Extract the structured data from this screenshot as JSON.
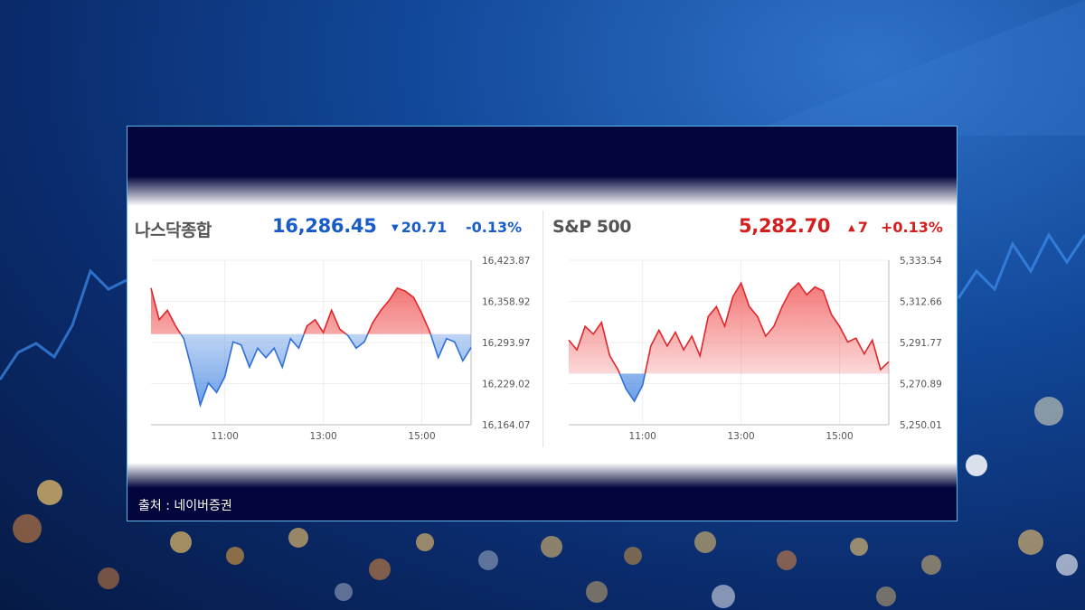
{
  "source_text": "출처 : 네이버증권",
  "chart_data": [
    {
      "type": "area",
      "name": "나스닥종합",
      "price": "16,286.45",
      "change": "20.71",
      "change_pct": "-0.13%",
      "direction": "down",
      "x_ticks": [
        "11:00",
        "13:00",
        "15:00"
      ],
      "y_ticks": [
        "16,423.87",
        "16,358.92",
        "16,293.97",
        "16,229.02",
        "16,164.07"
      ],
      "ylim": [
        16164.07,
        16423.87
      ],
      "prev_close": 16307.16,
      "x": [
        "09:30",
        "09:40",
        "09:50",
        "10:00",
        "10:10",
        "10:20",
        "10:30",
        "10:40",
        "10:50",
        "11:00",
        "11:10",
        "11:20",
        "11:30",
        "11:40",
        "11:50",
        "12:00",
        "12:10",
        "12:20",
        "12:30",
        "12:40",
        "12:50",
        "13:00",
        "13:10",
        "13:20",
        "13:30",
        "13:40",
        "13:50",
        "14:00",
        "14:10",
        "14:20",
        "14:30",
        "14:40",
        "14:50",
        "15:00",
        "15:10",
        "15:20",
        "15:30",
        "15:40",
        "15:50",
        "16:00"
      ],
      "values": [
        16380,
        16330,
        16345,
        16320,
        16300,
        16250,
        16195,
        16230,
        16215,
        16240,
        16295,
        16290,
        16255,
        16285,
        16270,
        16285,
        16255,
        16300,
        16285,
        16320,
        16330,
        16310,
        16345,
        16315,
        16305,
        16285,
        16295,
        16325,
        16345,
        16360,
        16380,
        16375,
        16365,
        16340,
        16310,
        16270,
        16300,
        16295,
        16265,
        16286
      ]
    },
    {
      "type": "area",
      "name": "S&P 500",
      "price": "5,282.70",
      "change": "7",
      "change_pct": "+0.13%",
      "direction": "up",
      "x_ticks": [
        "11:00",
        "13:00",
        "15:00"
      ],
      "y_ticks": [
        "5,333.54",
        "5,312.66",
        "5,291.77",
        "5,270.89",
        "5,250.01"
      ],
      "ylim": [
        5250.01,
        5333.54
      ],
      "prev_close": 5276.0,
      "x": [
        "09:30",
        "09:40",
        "09:50",
        "10:00",
        "10:10",
        "10:20",
        "10:30",
        "10:40",
        "10:50",
        "11:00",
        "11:10",
        "11:20",
        "11:30",
        "11:40",
        "11:50",
        "12:00",
        "12:10",
        "12:20",
        "12:30",
        "12:40",
        "12:50",
        "13:00",
        "13:10",
        "13:20",
        "13:30",
        "13:40",
        "13:50",
        "14:00",
        "14:10",
        "14:20",
        "14:30",
        "14:40",
        "14:50",
        "15:00",
        "15:10",
        "15:20",
        "15:30",
        "15:40",
        "15:50",
        "16:00"
      ],
      "values": [
        5293,
        5288,
        5300,
        5296,
        5302,
        5285,
        5278,
        5268,
        5262,
        5270,
        5290,
        5298,
        5290,
        5297,
        5288,
        5295,
        5285,
        5305,
        5310,
        5300,
        5315,
        5322,
        5310,
        5305,
        5295,
        5300,
        5310,
        5318,
        5322,
        5316,
        5320,
        5318,
        5306,
        5300,
        5292,
        5294,
        5286,
        5293,
        5278,
        5282
      ]
    }
  ]
}
